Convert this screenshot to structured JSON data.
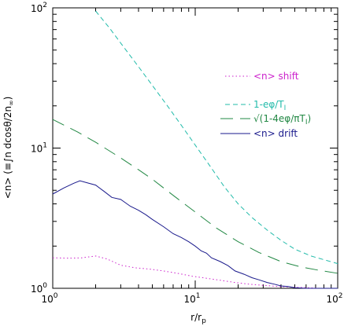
{
  "chart_data": {
    "type": "line",
    "xlabel": "r/r",
    "xlabel_sub": "p",
    "ylabel": "<n> (≡∫n dcosθ/2n",
    "ylabel_sub": "∞",
    "ylabel_close": ")",
    "xscale": "log",
    "yscale": "log",
    "xlim": [
      1,
      100
    ],
    "ylim": [
      1,
      100
    ],
    "grid": false,
    "legend_position": "right-middle",
    "x_major_ticks": [
      {
        "base": "10",
        "exp": "0",
        "value": 1
      },
      {
        "base": "10",
        "exp": "1",
        "value": 10
      },
      {
        "base": "10",
        "exp": "2",
        "value": 100
      }
    ],
    "y_major_ticks": [
      {
        "base": "10",
        "exp": "0",
        "value": 1
      },
      {
        "base": "10",
        "exp": "1",
        "value": 10
      },
      {
        "base": "10",
        "exp": "2",
        "value": 100
      }
    ],
    "series": [
      {
        "name": "<n> shift",
        "color": "#cc22cc",
        "dash": "dotted",
        "x": [
          1,
          1.3,
          1.6,
          2.0,
          2.4,
          3.0,
          3.8,
          4.8,
          6.0,
          7.5,
          9.5,
          12,
          15,
          19,
          24,
          30,
          38,
          48,
          60,
          75,
          100
        ],
        "y": [
          1.65,
          1.64,
          1.65,
          1.7,
          1.62,
          1.46,
          1.4,
          1.37,
          1.33,
          1.28,
          1.22,
          1.18,
          1.14,
          1.1,
          1.07,
          1.05,
          1.03,
          1.02,
          1.01,
          1.0,
          1.0
        ]
      },
      {
        "name": "1-eφ/T",
        "name_sub": "I",
        "color": "#22bbaa",
        "dash": "short-dash",
        "x": [
          2.0,
          2.5,
          3.0,
          4.0,
          5.0,
          6.5,
          8.0,
          10,
          13,
          16,
          20,
          25,
          32,
          40,
          50,
          65,
          80,
          100
        ],
        "y": [
          95,
          72,
          56,
          38,
          28,
          19.5,
          14.5,
          10.5,
          7.2,
          5.3,
          4.0,
          3.2,
          2.6,
          2.2,
          1.9,
          1.7,
          1.6,
          1.5
        ]
      },
      {
        "name": "√(1-4eφ/πT",
        "name_sub": "I",
        "name_tail": ")",
        "color": "#228844",
        "dash": "long-dash",
        "x": [
          1,
          1.5,
          2,
          3,
          4,
          5,
          7,
          10,
          14,
          20,
          28,
          40,
          55,
          75,
          100
        ],
        "y": [
          16,
          13,
          11,
          8.5,
          7.0,
          6.0,
          4.6,
          3.5,
          2.7,
          2.15,
          1.8,
          1.55,
          1.42,
          1.34,
          1.28
        ]
      },
      {
        "name": "<n> drift",
        "color": "#1a1a8c",
        "dash": "solid",
        "x": [
          1,
          1.2,
          1.4,
          1.55,
          1.8,
          2.0,
          2.3,
          2.6,
          3.0,
          3.5,
          4.0,
          4.5,
          5.0,
          6.0,
          7.0,
          8.0,
          9.0,
          10,
          11,
          12,
          13,
          15,
          17,
          19,
          22,
          25,
          28,
          32,
          36,
          40,
          45,
          50,
          60,
          70,
          80,
          100
        ],
        "y": [
          4.7,
          5.2,
          5.6,
          5.85,
          5.6,
          5.45,
          4.9,
          4.45,
          4.3,
          3.85,
          3.6,
          3.35,
          3.1,
          2.75,
          2.45,
          2.3,
          2.15,
          2.0,
          1.85,
          1.78,
          1.65,
          1.55,
          1.45,
          1.33,
          1.26,
          1.19,
          1.15,
          1.1,
          1.07,
          1.04,
          1.03,
          1.01,
          1.0,
          1.0,
          1.0,
          1.0
        ]
      }
    ]
  }
}
